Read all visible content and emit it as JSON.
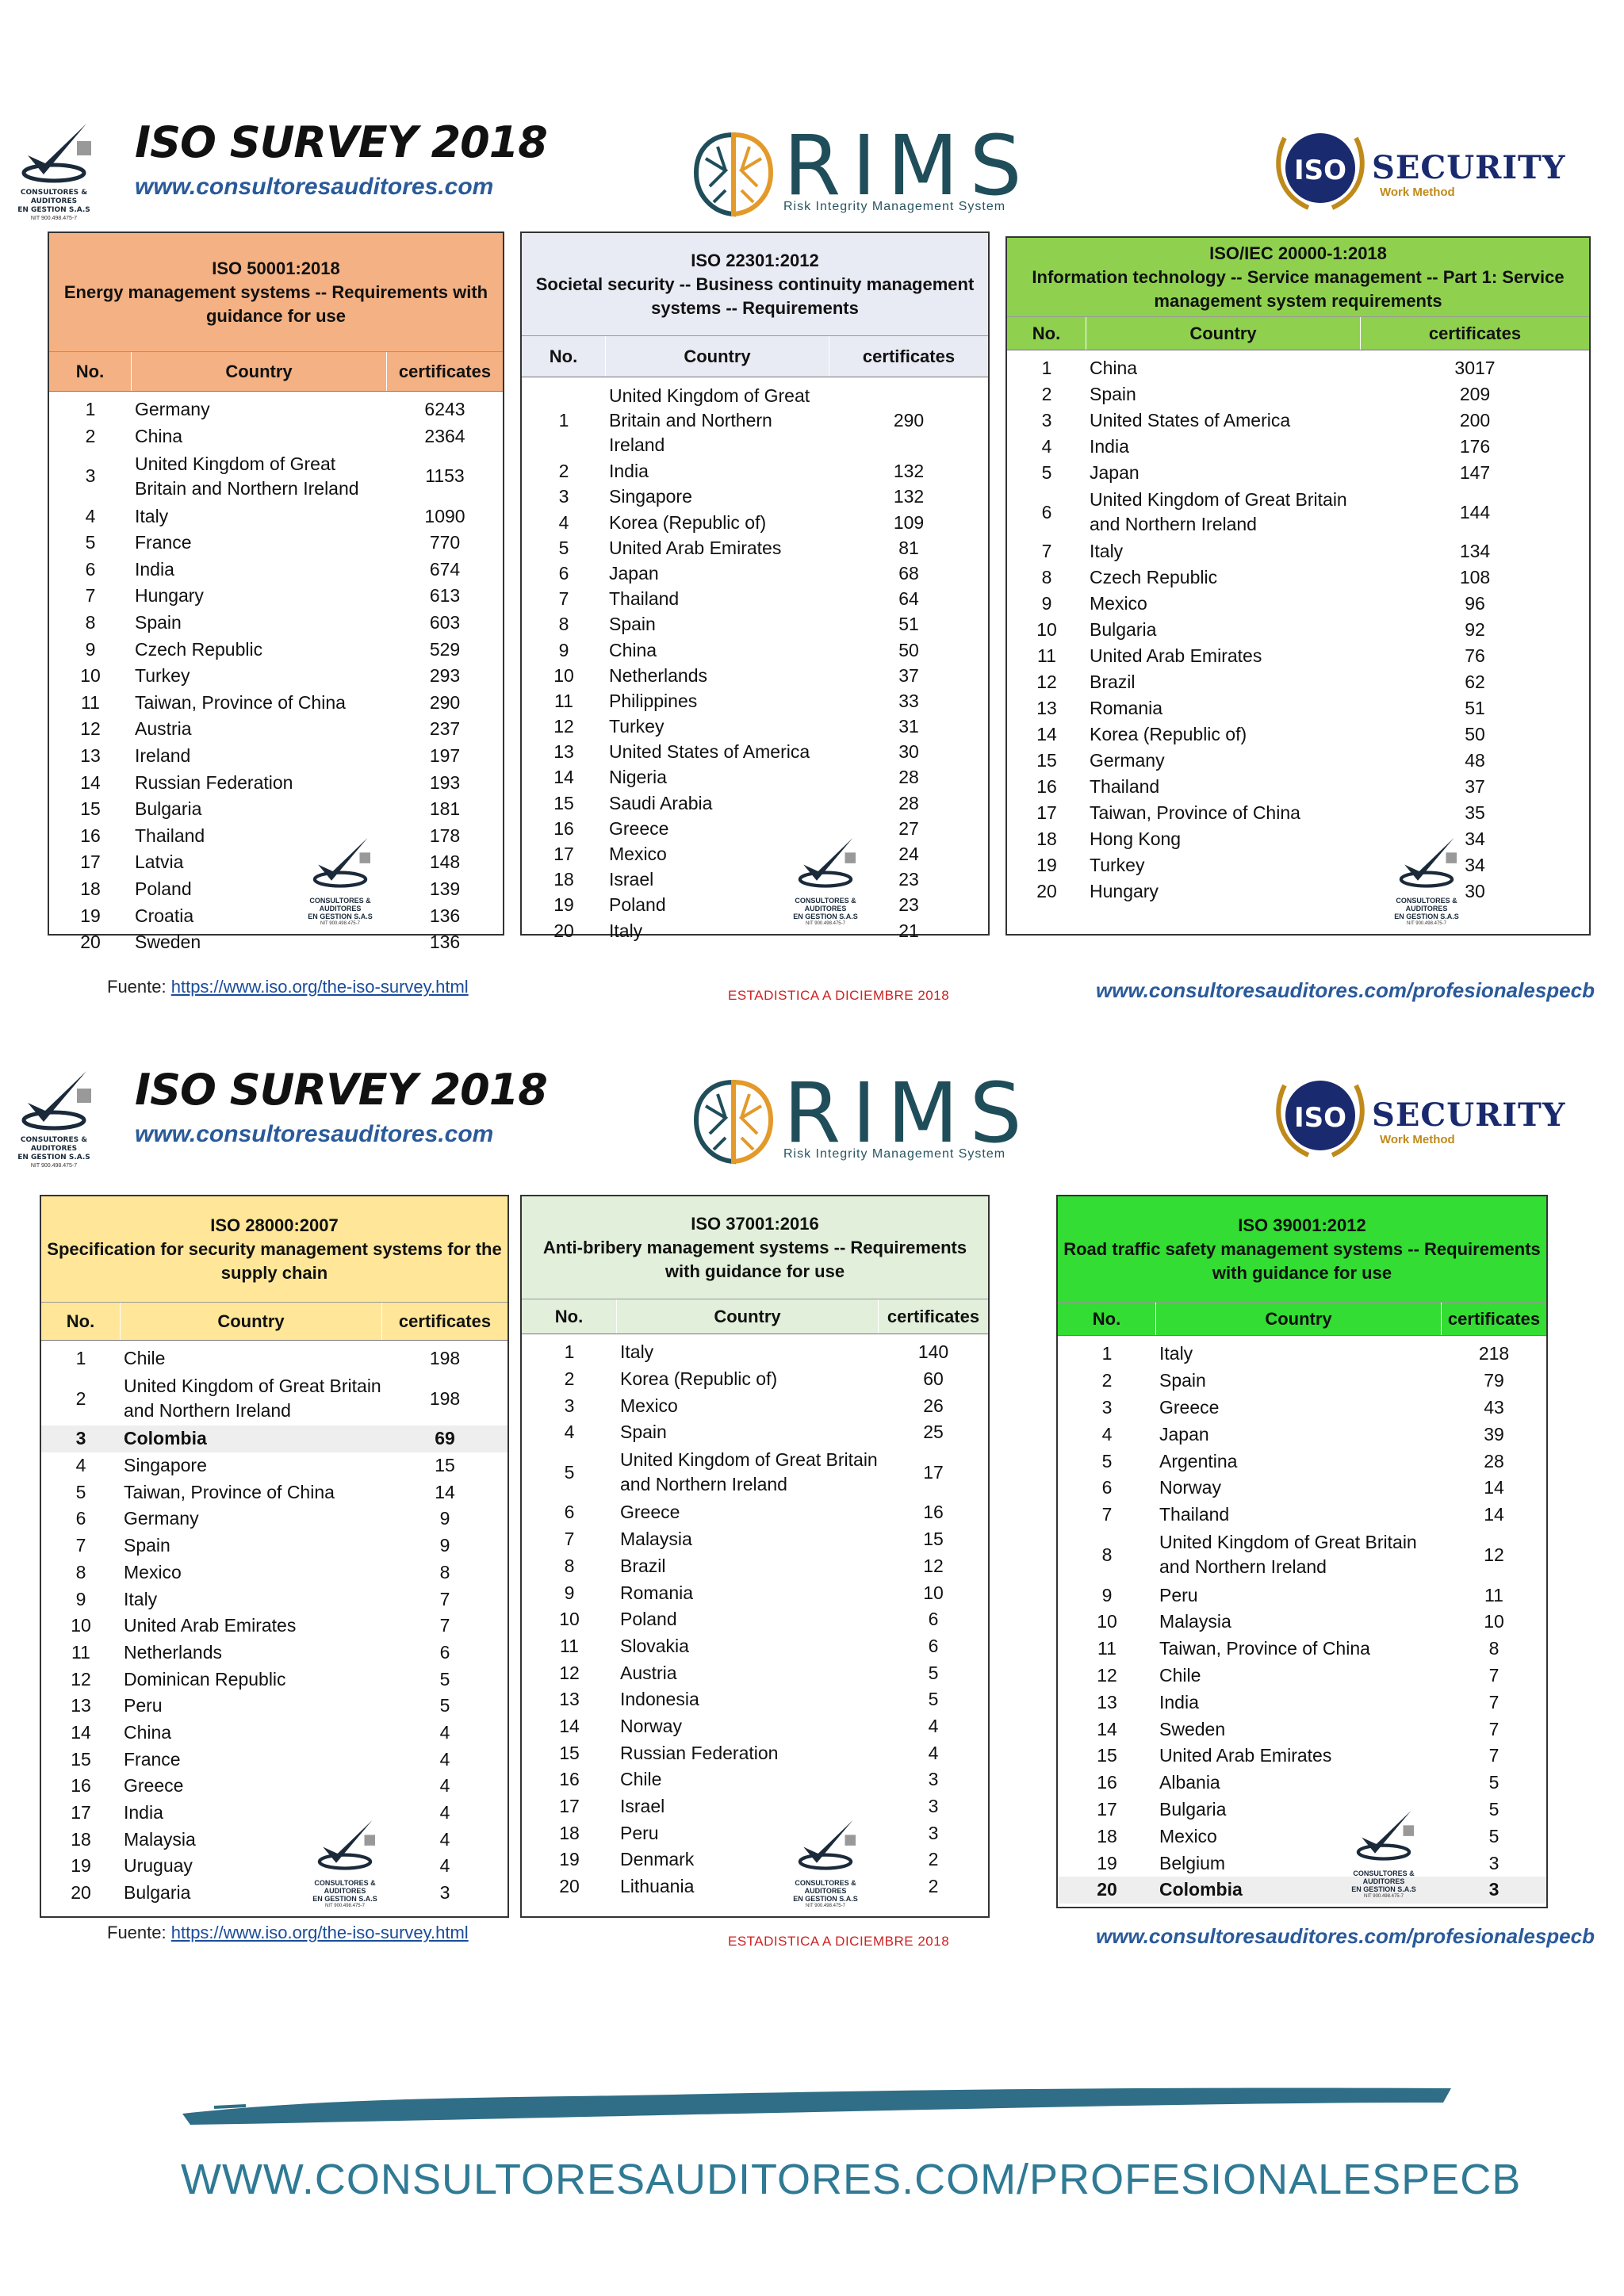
{
  "header": {
    "survey_title": "ISO SURVEY 2018",
    "site_url": "www.consultoresauditores.com",
    "logo_caption_line1": "CONSULTORES & AUDITORES",
    "logo_caption_line2": "EN GESTION S.A.S",
    "logo_caption_line3": "NIT 900.498.475-7",
    "rims_word": "RIMS",
    "rims_sub": "Risk Integrity Management System",
    "iso_badge_text": "ISO",
    "security_word": "SECURITY",
    "security_sub": "Work Method"
  },
  "footer": {
    "source_label": "Fuente:",
    "source_link": "https://www.iso.org/the-iso-survey.html",
    "stat_label": "ESTADISTICA A DICIEMBRE 2018",
    "right_url": "www.consultoresauditores.com/profesionalespecb",
    "big_url": "WWW.CONSULTORESAUDITORES.COM/PROFESIONALESPECB"
  },
  "colors": {
    "t1": "#f4b183",
    "t2": "#e8eaf4",
    "t3": "#8fd14f",
    "t4": "#ffe699",
    "t5": "#e2efda",
    "t6": "#33dd33",
    "header_url": "#2a5a9a",
    "stat_red": "#cc2222",
    "big_url": "#2f7a94"
  },
  "col_labels": {
    "no": "No.",
    "country": "Country",
    "cert": "certificates"
  },
  "tables": [
    {
      "standard": "ISO 50001:2018",
      "description": "Energy management systems -- Requirements with guidance for use",
      "rows": [
        {
          "no": "1",
          "country": "Germany",
          "cert": "6243"
        },
        {
          "no": "2",
          "country": "China",
          "cert": "2364"
        },
        {
          "no": "3",
          "country": "United Kingdom of Great Britain and Northern Ireland",
          "cert": "1153"
        },
        {
          "no": "4",
          "country": "Italy",
          "cert": "1090"
        },
        {
          "no": "5",
          "country": "France",
          "cert": "770"
        },
        {
          "no": "6",
          "country": "India",
          "cert": "674"
        },
        {
          "no": "7",
          "country": "Hungary",
          "cert": "613"
        },
        {
          "no": "8",
          "country": "Spain",
          "cert": "603"
        },
        {
          "no": "9",
          "country": "Czech Republic",
          "cert": "529"
        },
        {
          "no": "10",
          "country": "Turkey",
          "cert": "293"
        },
        {
          "no": "11",
          "country": "Taiwan, Province of China",
          "cert": "290"
        },
        {
          "no": "12",
          "country": "Austria",
          "cert": "237"
        },
        {
          "no": "13",
          "country": "Ireland",
          "cert": "197"
        },
        {
          "no": "14",
          "country": "Russian Federation",
          "cert": "193"
        },
        {
          "no": "15",
          "country": "Bulgaria",
          "cert": "181"
        },
        {
          "no": "16",
          "country": "Thailand",
          "cert": "178"
        },
        {
          "no": "17",
          "country": "Latvia",
          "cert": "148"
        },
        {
          "no": "18",
          "country": "Poland",
          "cert": "139"
        },
        {
          "no": "19",
          "country": "Croatia",
          "cert": "136"
        },
        {
          "no": "20",
          "country": "Sweden",
          "cert": "136"
        }
      ]
    },
    {
      "standard": "ISO 22301:2012",
      "description": "Societal security -- Business continuity management systems -- Requirements",
      "rows": [
        {
          "no": "1",
          "country": "United Kingdom of Great Britain and Northern Ireland",
          "cert": "290"
        },
        {
          "no": "2",
          "country": "India",
          "cert": "132"
        },
        {
          "no": "3",
          "country": "Singapore",
          "cert": "132"
        },
        {
          "no": "4",
          "country": "Korea (Republic of)",
          "cert": "109"
        },
        {
          "no": "5",
          "country": "United Arab Emirates",
          "cert": "81"
        },
        {
          "no": "6",
          "country": "Japan",
          "cert": "68"
        },
        {
          "no": "7",
          "country": "Thailand",
          "cert": "64"
        },
        {
          "no": "8",
          "country": "Spain",
          "cert": "51"
        },
        {
          "no": "9",
          "country": "China",
          "cert": "50"
        },
        {
          "no": "10",
          "country": "Netherlands",
          "cert": "37"
        },
        {
          "no": "11",
          "country": "Philippines",
          "cert": "33"
        },
        {
          "no": "12",
          "country": "Turkey",
          "cert": "31"
        },
        {
          "no": "13",
          "country": "United States of America",
          "cert": "30"
        },
        {
          "no": "14",
          "country": "Nigeria",
          "cert": "28"
        },
        {
          "no": "15",
          "country": "Saudi Arabia",
          "cert": "28"
        },
        {
          "no": "16",
          "country": "Greece",
          "cert": "27"
        },
        {
          "no": "17",
          "country": "Mexico",
          "cert": "24"
        },
        {
          "no": "18",
          "country": "Israel",
          "cert": "23"
        },
        {
          "no": "19",
          "country": "Poland",
          "cert": "23"
        },
        {
          "no": "20",
          "country": "Italy",
          "cert": "21"
        }
      ]
    },
    {
      "standard": "ISO/IEC 20000-1:2018",
      "description": "Information technology -- Service management -- Part 1: Service management system requirements",
      "rows": [
        {
          "no": "1",
          "country": "China",
          "cert": "3017"
        },
        {
          "no": "2",
          "country": "Spain",
          "cert": "209"
        },
        {
          "no": "3",
          "country": "United States of America",
          "cert": "200"
        },
        {
          "no": "4",
          "country": "India",
          "cert": "176"
        },
        {
          "no": "5",
          "country": "Japan",
          "cert": "147"
        },
        {
          "no": "6",
          "country": "United Kingdom of Great Britain and Northern Ireland",
          "cert": "144"
        },
        {
          "no": "7",
          "country": "Italy",
          "cert": "134"
        },
        {
          "no": "8",
          "country": "Czech Republic",
          "cert": "108"
        },
        {
          "no": "9",
          "country": "Mexico",
          "cert": "96"
        },
        {
          "no": "10",
          "country": "Bulgaria",
          "cert": "92"
        },
        {
          "no": "11",
          "country": "United Arab Emirates",
          "cert": "76"
        },
        {
          "no": "12",
          "country": "Brazil",
          "cert": "62"
        },
        {
          "no": "13",
          "country": "Romania",
          "cert": "51"
        },
        {
          "no": "14",
          "country": "Korea (Republic of)",
          "cert": "50"
        },
        {
          "no": "15",
          "country": "Germany",
          "cert": "48"
        },
        {
          "no": "16",
          "country": "Thailand",
          "cert": "37"
        },
        {
          "no": "17",
          "country": "Taiwan, Province of China",
          "cert": "35"
        },
        {
          "no": "18",
          "country": "Hong Kong",
          "cert": "34"
        },
        {
          "no": "19",
          "country": "Turkey",
          "cert": "34"
        },
        {
          "no": "20",
          "country": "Hungary",
          "cert": "30"
        }
      ]
    },
    {
      "standard": "ISO 28000:2007",
      "description": "Specification for security management systems for the supply chain",
      "rows": [
        {
          "no": "1",
          "country": "Chile",
          "cert": "198"
        },
        {
          "no": "2",
          "country": "United Kingdom of Great Britain and Northern Ireland",
          "cert": "198"
        },
        {
          "no": "3",
          "country": "Colombia",
          "cert": "69",
          "highlight": true
        },
        {
          "no": "4",
          "country": "Singapore",
          "cert": "15"
        },
        {
          "no": "5",
          "country": "Taiwan, Province of China",
          "cert": "14"
        },
        {
          "no": "6",
          "country": "Germany",
          "cert": "9"
        },
        {
          "no": "7",
          "country": "Spain",
          "cert": "9"
        },
        {
          "no": "8",
          "country": "Mexico",
          "cert": "8"
        },
        {
          "no": "9",
          "country": "Italy",
          "cert": "7"
        },
        {
          "no": "10",
          "country": "United Arab Emirates",
          "cert": "7"
        },
        {
          "no": "11",
          "country": "Netherlands",
          "cert": "6"
        },
        {
          "no": "12",
          "country": "Dominican Republic",
          "cert": "5"
        },
        {
          "no": "13",
          "country": "Peru",
          "cert": "5"
        },
        {
          "no": "14",
          "country": "China",
          "cert": "4"
        },
        {
          "no": "15",
          "country": "France",
          "cert": "4"
        },
        {
          "no": "16",
          "country": "Greece",
          "cert": "4"
        },
        {
          "no": "17",
          "country": "India",
          "cert": "4"
        },
        {
          "no": "18",
          "country": "Malaysia",
          "cert": "4"
        },
        {
          "no": "19",
          "country": "Uruguay",
          "cert": "4"
        },
        {
          "no": "20",
          "country": "Bulgaria",
          "cert": "3"
        }
      ]
    },
    {
      "standard": "ISO 37001:2016",
      "description": "Anti-bribery management systems -- Requirements with guidance for use",
      "rows": [
        {
          "no": "1",
          "country": "Italy",
          "cert": "140"
        },
        {
          "no": "2",
          "country": "Korea (Republic of)",
          "cert": "60"
        },
        {
          "no": "3",
          "country": "Mexico",
          "cert": "26"
        },
        {
          "no": "4",
          "country": "Spain",
          "cert": "25"
        },
        {
          "no": "5",
          "country": "United Kingdom of Great Britain and Northern Ireland",
          "cert": "17"
        },
        {
          "no": "6",
          "country": "Greece",
          "cert": "16"
        },
        {
          "no": "7",
          "country": "Malaysia",
          "cert": "15"
        },
        {
          "no": "8",
          "country": "Brazil",
          "cert": "12"
        },
        {
          "no": "9",
          "country": "Romania",
          "cert": "10"
        },
        {
          "no": "10",
          "country": "Poland",
          "cert": "6"
        },
        {
          "no": "11",
          "country": "Slovakia",
          "cert": "6"
        },
        {
          "no": "12",
          "country": "Austria",
          "cert": "5"
        },
        {
          "no": "13",
          "country": "Indonesia",
          "cert": "5"
        },
        {
          "no": "14",
          "country": "Norway",
          "cert": "4"
        },
        {
          "no": "15",
          "country": "Russian Federation",
          "cert": "4"
        },
        {
          "no": "16",
          "country": "Chile",
          "cert": "3"
        },
        {
          "no": "17",
          "country": "Israel",
          "cert": "3"
        },
        {
          "no": "18",
          "country": "Peru",
          "cert": "3"
        },
        {
          "no": "19",
          "country": "Denmark",
          "cert": "2"
        },
        {
          "no": "20",
          "country": "Lithuania",
          "cert": "2"
        }
      ]
    },
    {
      "standard": "ISO 39001:2012",
      "description": "Road traffic safety management systems -- Requirements with guidance for use",
      "rows": [
        {
          "no": "1",
          "country": "Italy",
          "cert": "218"
        },
        {
          "no": "2",
          "country": "Spain",
          "cert": "79"
        },
        {
          "no": "3",
          "country": "Greece",
          "cert": "43"
        },
        {
          "no": "4",
          "country": "Japan",
          "cert": "39"
        },
        {
          "no": "5",
          "country": "Argentina",
          "cert": "28"
        },
        {
          "no": "6",
          "country": "Norway",
          "cert": "14"
        },
        {
          "no": "7",
          "country": "Thailand",
          "cert": "14"
        },
        {
          "no": "8",
          "country": "United Kingdom of Great Britain and Northern Ireland",
          "cert": "12"
        },
        {
          "no": "9",
          "country": "Peru",
          "cert": "11"
        },
        {
          "no": "10",
          "country": "Malaysia",
          "cert": "10"
        },
        {
          "no": "11",
          "country": "Taiwan, Province of China",
          "cert": "8"
        },
        {
          "no": "12",
          "country": "Chile",
          "cert": "7"
        },
        {
          "no": "13",
          "country": "India",
          "cert": "7"
        },
        {
          "no": "14",
          "country": "Sweden",
          "cert": "7"
        },
        {
          "no": "15",
          "country": "United Arab Emirates",
          "cert": "7"
        },
        {
          "no": "16",
          "country": "Albania",
          "cert": "5"
        },
        {
          "no": "17",
          "country": "Bulgaria",
          "cert": "5"
        },
        {
          "no": "18",
          "country": "Mexico",
          "cert": "5"
        },
        {
          "no": "19",
          "country": "Belgium",
          "cert": "3"
        },
        {
          "no": "20",
          "country": "Colombia",
          "cert": "3",
          "highlight": true
        }
      ]
    }
  ]
}
